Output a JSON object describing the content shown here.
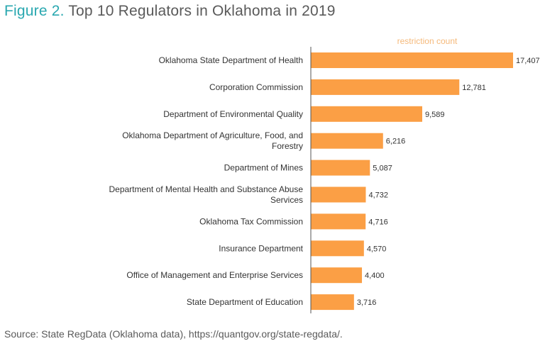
{
  "figure": {
    "label": "Figure 2.",
    "title": "Top 10 Regulators in Oklahoma in 2019",
    "source": "Source: State RegData (Oklahoma data), https://quantgov.org/state-regdata/."
  },
  "colors": {
    "bar": "#fb9f45",
    "axis": "#555555",
    "title_accent": "#2aa8b0",
    "axis_title": "#f5b97a"
  },
  "chart_data": {
    "type": "bar",
    "orientation": "horizontal",
    "title": "Top 10 Regulators in Oklahoma in 2019",
    "xlabel": "restriction count",
    "ylabel": "",
    "grid": false,
    "legend": "none",
    "xlim": [
      0,
      17407
    ],
    "categories": [
      [
        "Oklahoma State Department of Health"
      ],
      [
        "Corporation Commission"
      ],
      [
        "Department of Environmental Quality"
      ],
      [
        "Oklahoma Department of Agriculture, Food, and",
        "Forestry"
      ],
      [
        "Department of Mines"
      ],
      [
        "Department of Mental Health and Substance Abuse",
        "Services"
      ],
      [
        "Oklahoma Tax Commission"
      ],
      [
        "Insurance Department"
      ],
      [
        "Office of Management and Enterprise Services"
      ],
      [
        "State Department of Education"
      ]
    ],
    "values": [
      17407,
      12781,
      9589,
      6216,
      5087,
      4732,
      4716,
      4570,
      4400,
      3716
    ],
    "labels": [
      "17,407",
      "12,781",
      "9,589",
      "6,216",
      "5,087",
      "4,732",
      "4,716",
      "4,570",
      "4,400",
      "3,716"
    ]
  }
}
